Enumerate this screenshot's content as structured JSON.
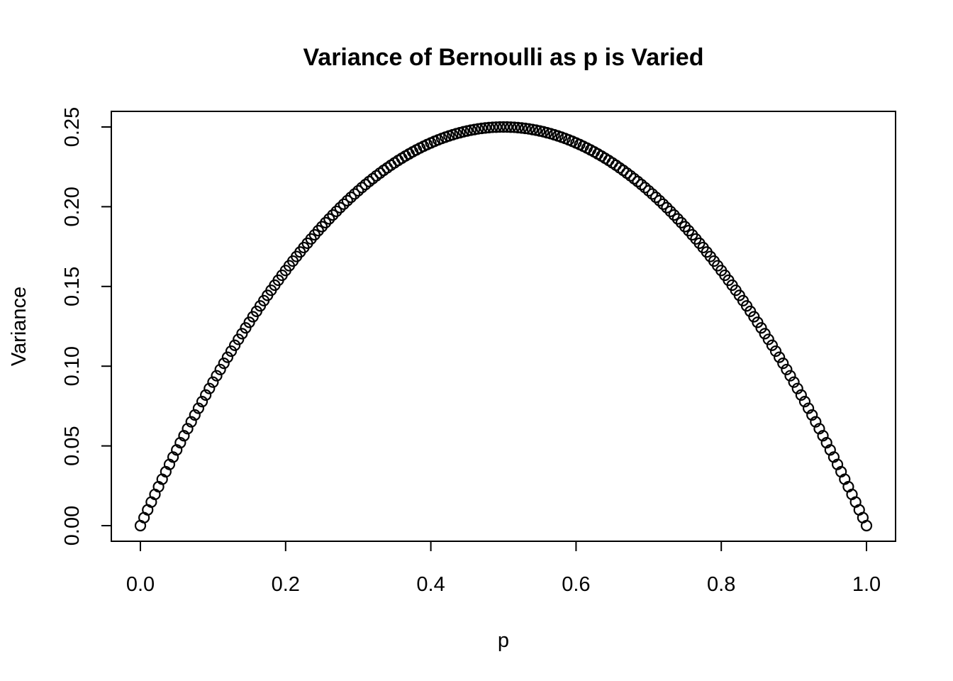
{
  "chart_data": {
    "type": "scatter",
    "title": "Variance of Bernoulli as p is Varied",
    "xlabel": "p",
    "ylabel": "Variance",
    "xlim": [
      0.0,
      1.0
    ],
    "ylim": [
      0.0,
      0.25
    ],
    "xticks": [
      "0.0",
      "0.2",
      "0.4",
      "0.6",
      "0.8",
      "1.0"
    ],
    "yticks": [
      "0.00",
      "0.05",
      "0.10",
      "0.15",
      "0.20",
      "0.25"
    ],
    "series": [
      {
        "marker": "open-circle",
        "color": "#000000",
        "x": [
          0.0,
          0.005,
          0.01,
          0.015,
          0.02,
          0.025,
          0.03,
          0.035,
          0.04,
          0.045,
          0.05,
          0.055,
          0.06,
          0.065,
          0.07,
          0.075,
          0.08,
          0.085,
          0.09,
          0.095,
          0.1,
          0.105,
          0.11,
          0.115,
          0.12,
          0.125,
          0.13,
          0.135,
          0.14,
          0.145,
          0.15,
          0.155,
          0.16,
          0.165,
          0.17,
          0.175,
          0.18,
          0.185,
          0.19,
          0.195,
          0.2,
          0.205,
          0.21,
          0.215,
          0.22,
          0.225,
          0.23,
          0.235,
          0.24,
          0.245,
          0.25,
          0.255,
          0.26,
          0.265,
          0.27,
          0.275,
          0.28,
          0.285,
          0.29,
          0.295,
          0.3,
          0.305,
          0.31,
          0.315,
          0.32,
          0.325,
          0.33,
          0.335,
          0.34,
          0.345,
          0.35,
          0.355,
          0.36,
          0.365,
          0.37,
          0.375,
          0.38,
          0.385,
          0.39,
          0.395,
          0.4,
          0.405,
          0.41,
          0.415,
          0.42,
          0.425,
          0.43,
          0.435,
          0.44,
          0.445,
          0.45,
          0.455,
          0.46,
          0.465,
          0.47,
          0.475,
          0.48,
          0.485,
          0.49,
          0.495,
          0.5,
          0.505,
          0.51,
          0.515,
          0.52,
          0.525,
          0.53,
          0.535,
          0.54,
          0.545,
          0.55,
          0.555,
          0.56,
          0.565,
          0.57,
          0.575,
          0.58,
          0.585,
          0.59,
          0.595,
          0.6,
          0.605,
          0.61,
          0.615,
          0.62,
          0.625,
          0.63,
          0.635,
          0.64,
          0.645,
          0.65,
          0.655,
          0.66,
          0.665,
          0.67,
          0.675,
          0.68,
          0.685,
          0.69,
          0.695,
          0.7,
          0.705,
          0.71,
          0.715,
          0.72,
          0.725,
          0.73,
          0.735,
          0.74,
          0.745,
          0.75,
          0.755,
          0.76,
          0.765,
          0.77,
          0.775,
          0.78,
          0.785,
          0.79,
          0.795,
          0.8,
          0.805,
          0.81,
          0.815,
          0.82,
          0.825,
          0.83,
          0.835,
          0.84,
          0.845,
          0.85,
          0.855,
          0.86,
          0.865,
          0.87,
          0.875,
          0.88,
          0.885,
          0.89,
          0.895,
          0.9,
          0.905,
          0.91,
          0.915,
          0.92,
          0.925,
          0.93,
          0.935,
          0.94,
          0.945,
          0.95,
          0.955,
          0.96,
          0.965,
          0.97,
          0.975,
          0.98,
          0.985,
          0.99,
          0.995,
          1.0
        ],
        "y": [
          0.0,
          0.005,
          0.0099,
          0.0148,
          0.0196,
          0.0244,
          0.0291,
          0.0338,
          0.0384,
          0.043,
          0.0475,
          0.052,
          0.0564,
          0.0608,
          0.0651,
          0.0694,
          0.0736,
          0.0778,
          0.0819,
          0.086,
          0.09,
          0.094,
          0.0979,
          0.1018,
          0.1056,
          0.1094,
          0.1131,
          0.1168,
          0.1204,
          0.124,
          0.1275,
          0.131,
          0.1344,
          0.1378,
          0.1411,
          0.1444,
          0.1476,
          0.1508,
          0.1539,
          0.157,
          0.16,
          0.163,
          0.1659,
          0.1688,
          0.1716,
          0.1744,
          0.1771,
          0.1798,
          0.1824,
          0.185,
          0.1875,
          0.19,
          0.1924,
          0.1948,
          0.1971,
          0.1994,
          0.2016,
          0.2038,
          0.2059,
          0.208,
          0.21,
          0.212,
          0.2139,
          0.2158,
          0.2176,
          0.2194,
          0.2211,
          0.2228,
          0.2244,
          0.226,
          0.2275,
          0.229,
          0.2304,
          0.2318,
          0.2331,
          0.2344,
          0.2356,
          0.2368,
          0.2379,
          0.239,
          0.24,
          0.241,
          0.2419,
          0.2428,
          0.2436,
          0.2444,
          0.2451,
          0.2458,
          0.2464,
          0.247,
          0.2475,
          0.248,
          0.2484,
          0.2488,
          0.2491,
          0.2494,
          0.2496,
          0.2498,
          0.2499,
          0.25,
          0.25,
          0.25,
          0.2499,
          0.2498,
          0.2496,
          0.2494,
          0.2491,
          0.2488,
          0.2484,
          0.248,
          0.2475,
          0.247,
          0.2464,
          0.2458,
          0.2451,
          0.2444,
          0.2436,
          0.2428,
          0.2419,
          0.241,
          0.24,
          0.239,
          0.2379,
          0.2368,
          0.2356,
          0.2344,
          0.2331,
          0.2318,
          0.2304,
          0.229,
          0.2275,
          0.226,
          0.2244,
          0.2228,
          0.2211,
          0.2194,
          0.2176,
          0.2158,
          0.2139,
          0.212,
          0.21,
          0.208,
          0.2059,
          0.2038,
          0.2016,
          0.1994,
          0.1971,
          0.1948,
          0.1924,
          0.19,
          0.1875,
          0.185,
          0.1824,
          0.1798,
          0.1771,
          0.1744,
          0.1716,
          0.1688,
          0.1659,
          0.163,
          0.16,
          0.157,
          0.1539,
          0.1508,
          0.1476,
          0.1444,
          0.1411,
          0.1378,
          0.1344,
          0.131,
          0.1275,
          0.124,
          0.1204,
          0.1168,
          0.1131,
          0.1094,
          0.1056,
          0.1018,
          0.0979,
          0.094,
          0.09,
          0.086,
          0.0819,
          0.0778,
          0.0736,
          0.0694,
          0.0651,
          0.0608,
          0.0564,
          0.052,
          0.0475,
          0.043,
          0.0384,
          0.0338,
          0.0291,
          0.0244,
          0.0196,
          0.0148,
          0.0099,
          0.005,
          0.0
        ]
      }
    ],
    "grid": false,
    "legend": "none"
  }
}
